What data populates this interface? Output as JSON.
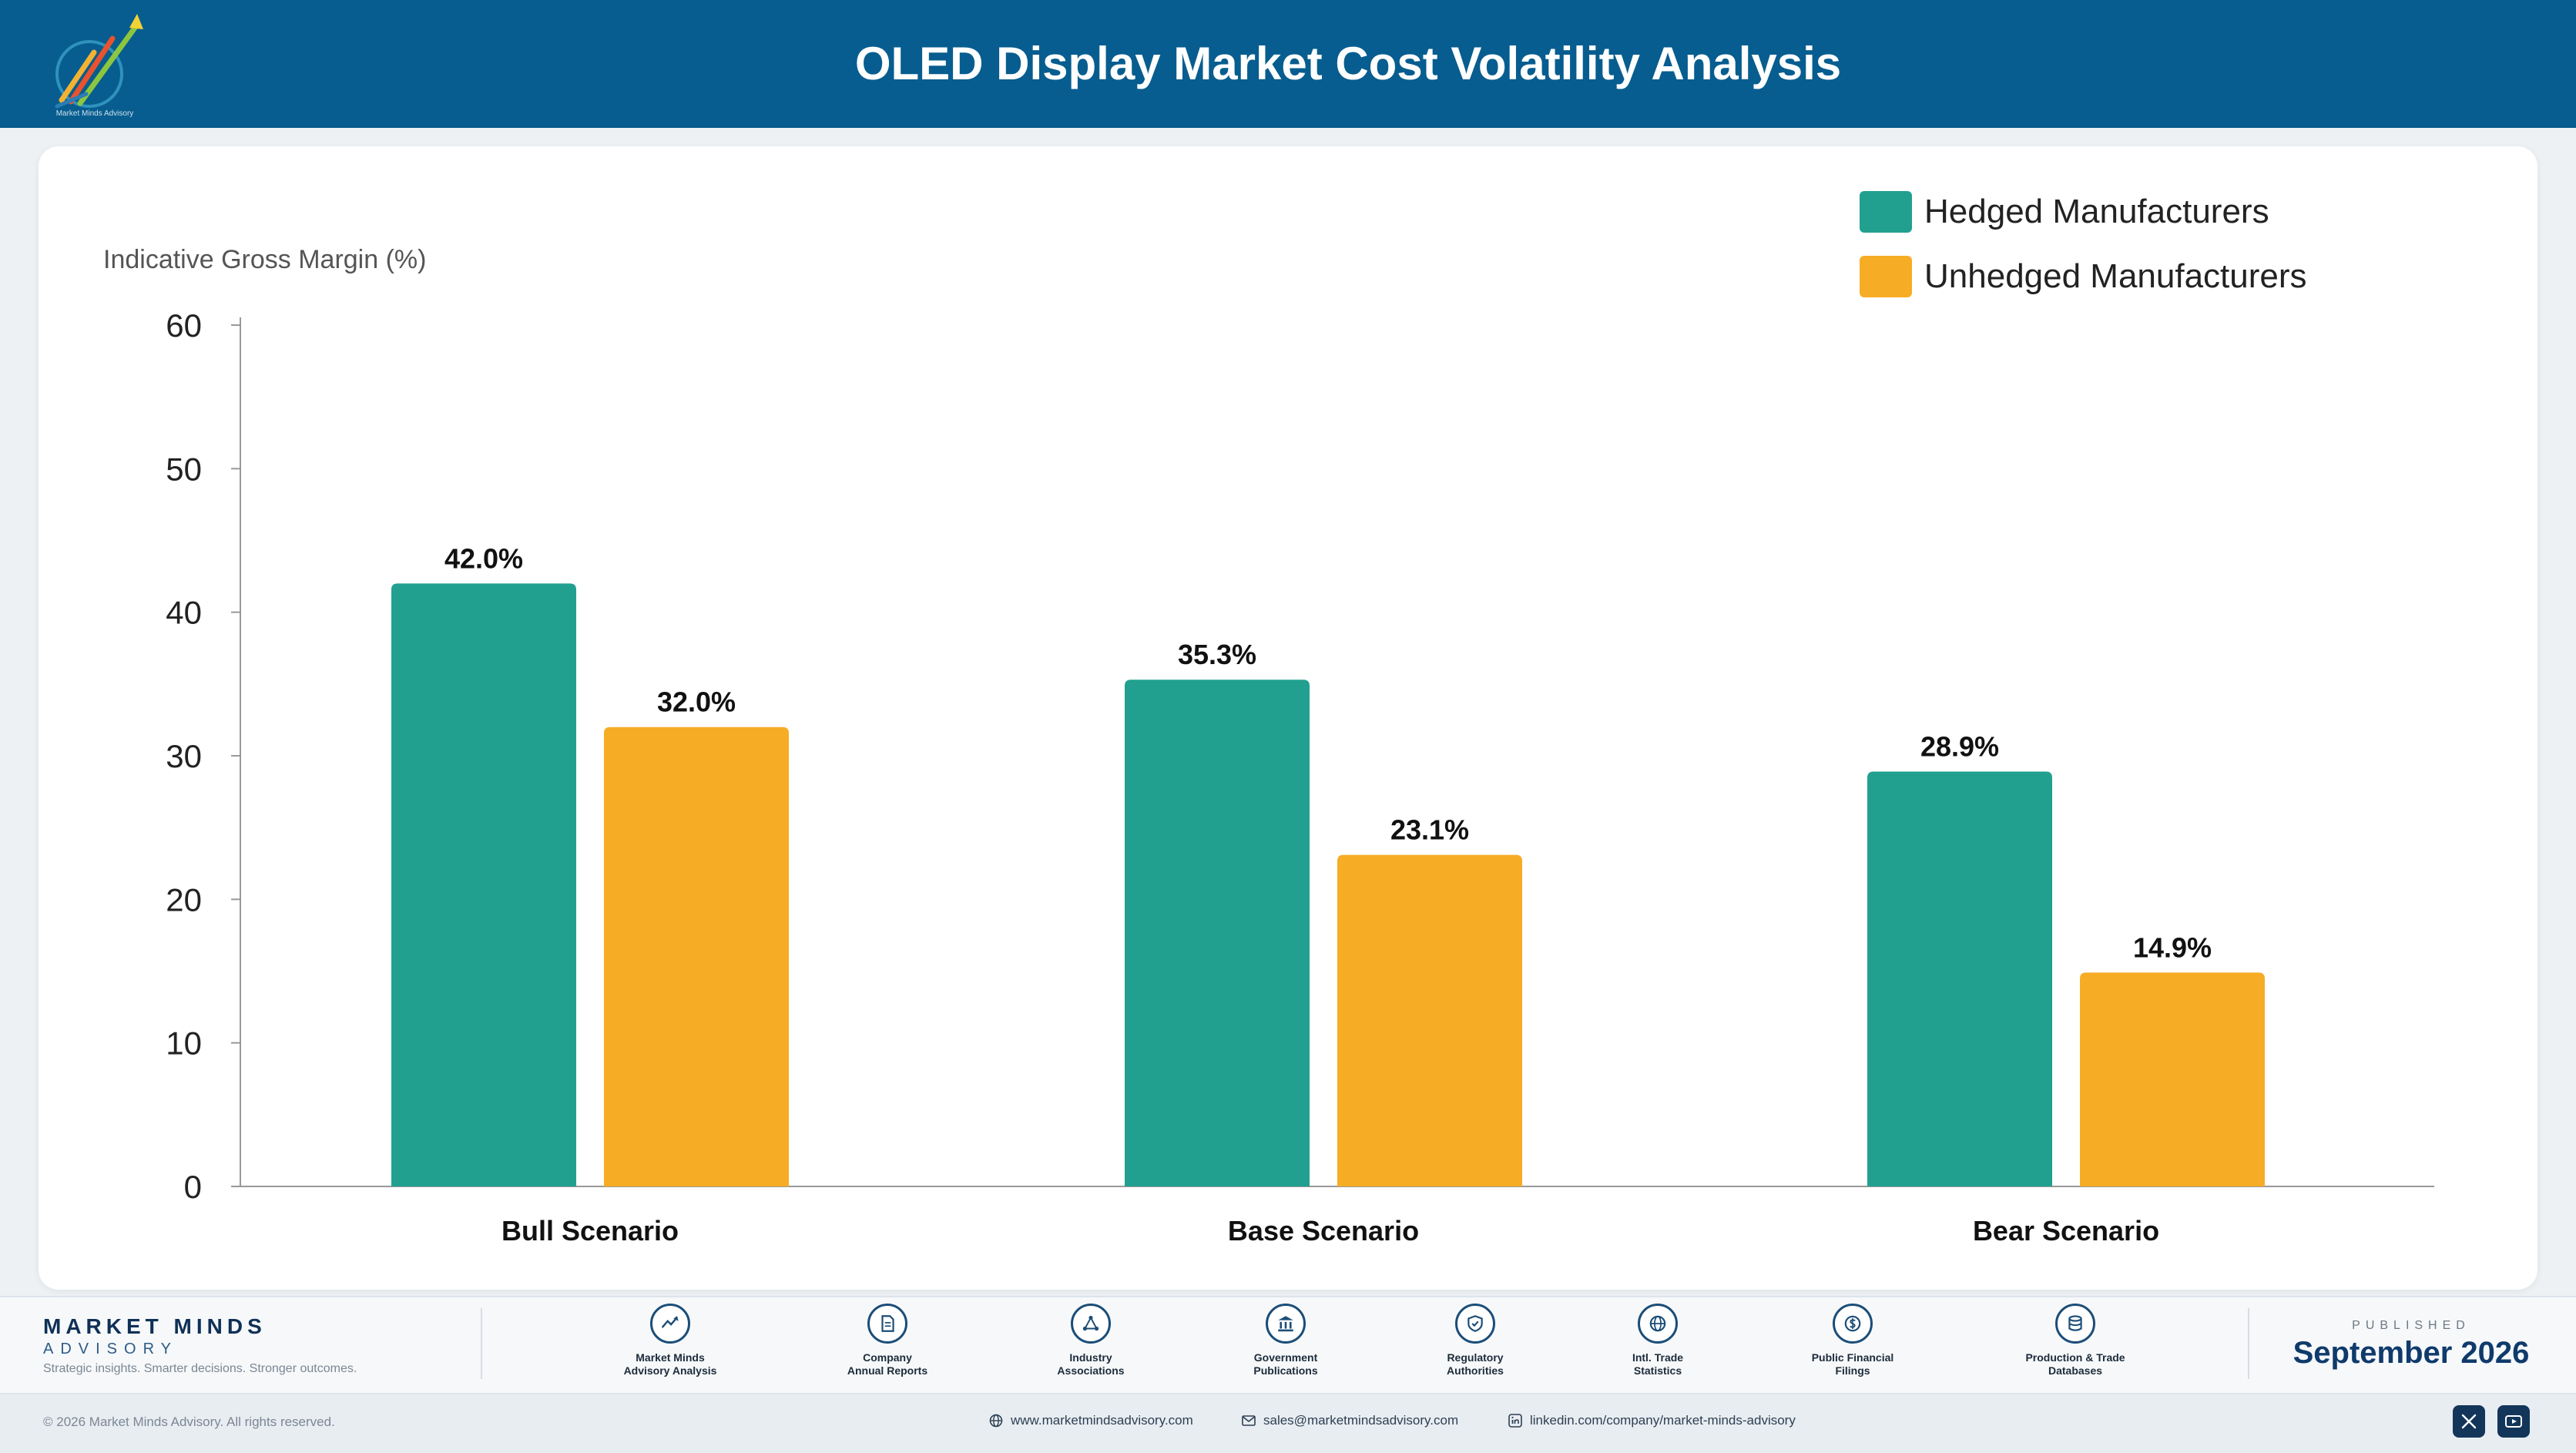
{
  "header": {
    "title": "OLED Display Market Cost Volatility Analysis",
    "logo_text": "Market Minds Advisory"
  },
  "colors": {
    "header_bg": "#075d8f",
    "hedged": "#21a090",
    "unhedged": "#f7ac25",
    "footer_text": "#0f3056"
  },
  "chart_data": {
    "type": "bar",
    "title": "",
    "ylabel": "Indicative Gross Margin (%)",
    "xlabel": "",
    "categories": [
      "Bull Scenario",
      "Base Scenario",
      "Bear Scenario"
    ],
    "series": [
      {
        "name": "Hedged Manufacturers",
        "values": [
          42.0,
          35.3,
          28.9
        ],
        "color": "#21a090",
        "labels": [
          "42.0%",
          "35.3%",
          "28.9%"
        ]
      },
      {
        "name": "Unhedged Manufacturers",
        "values": [
          32.0,
          23.1,
          14.9
        ],
        "color": "#f7ac25",
        "labels": [
          "32.0%",
          "23.1%",
          "14.9%"
        ]
      }
    ],
    "ylim": [
      0,
      60
    ],
    "yticks": [
      0,
      10,
      20,
      30,
      40,
      50,
      60
    ],
    "grid": false,
    "legend_position": "top-right"
  },
  "footer": {
    "brand_name": "MARKET MINDS",
    "brand_sub": "ADVISORY",
    "brand_tagline": "Strategic insights. Smarter decisions. Stronger outcomes.",
    "sources": [
      {
        "label": "Market Minds\nAdvisory Analysis",
        "icon": "trend-chart-icon"
      },
      {
        "label": "Company\nAnnual Reports",
        "icon": "document-icon"
      },
      {
        "label": "Industry\nAssociations",
        "icon": "network-icon"
      },
      {
        "label": "Government\nPublications",
        "icon": "government-building-icon"
      },
      {
        "label": "Regulatory\nAuthorities",
        "icon": "shield-icon"
      },
      {
        "label": "Intl. Trade\nStatistics",
        "icon": "globe-icon"
      },
      {
        "label": "Public Financial\nFilings",
        "icon": "dollar-coin-icon"
      },
      {
        "label": "Production & Trade\nDatabases",
        "icon": "database-icon"
      }
    ],
    "published_label": "PUBLISHED",
    "published_date": "September 2026",
    "copyright": "© 2026 Market Minds Advisory. All rights reserved.",
    "website": "www.marketmindsadvisory.com",
    "email": "sales@marketmindsadvisory.com",
    "linkedin": "linkedin.com/company/market-minds-advisory"
  }
}
